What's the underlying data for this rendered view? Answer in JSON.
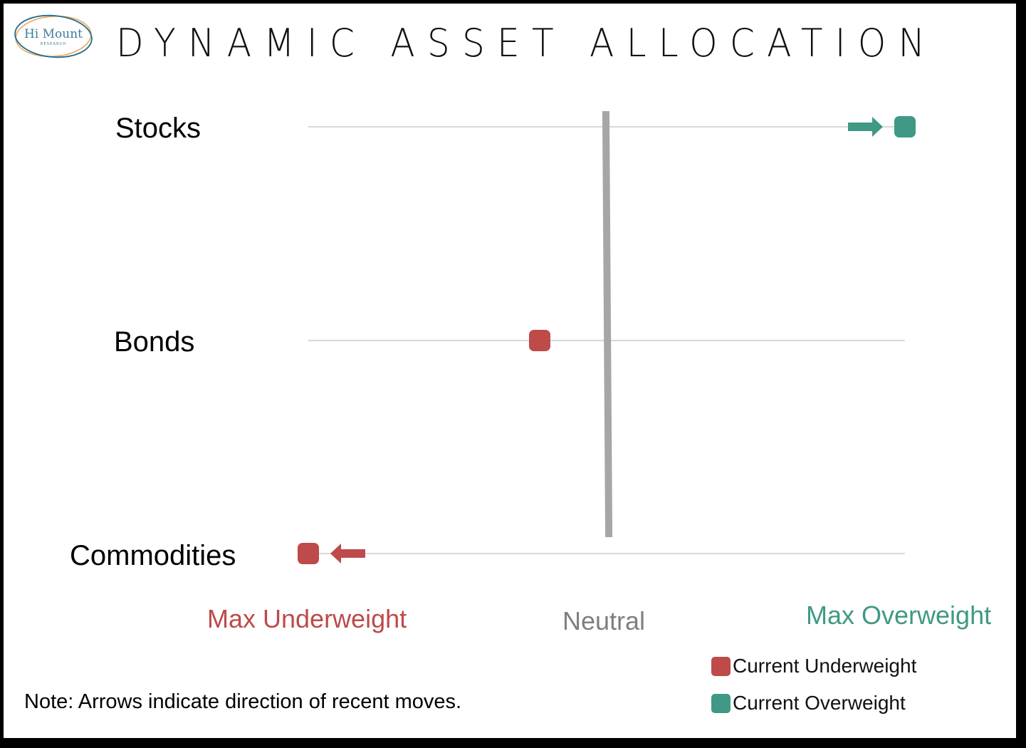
{
  "logo": {
    "name": "Hi Mount",
    "subtitle": "RESEARCH",
    "ring_colors": [
      "#1F6E8C",
      "#F0A65A"
    ],
    "text_color": "#3E7C9A"
  },
  "title": "DYNAMIC ASSET ALLOCATION",
  "colors": {
    "underweight": "#BE4A4A",
    "overweight": "#3F9985",
    "neutral": "#A6A6A6",
    "gridline": "#D9D9D9"
  },
  "axis": {
    "min_label": "Max Underweight",
    "mid_label": "Neutral",
    "max_label": "Max Overweight"
  },
  "legend": {
    "underweight_label": "Current Underweight",
    "overweight_label": "Current Overweight"
  },
  "note": "Note: Arrows indicate direction of recent moves.",
  "chart_data": {
    "type": "scatter",
    "title": "DYNAMIC ASSET ALLOCATION",
    "categories": [
      "Stocks",
      "Bonds",
      "Commodities"
    ],
    "xlim": [
      -1,
      1
    ],
    "x_tick_labels": [
      "Max Underweight",
      "Neutral",
      "Max Overweight"
    ],
    "values": [
      1.0,
      -0.22,
      -1.0
    ],
    "status": [
      "Current Overweight",
      "Current Underweight",
      "Current Underweight"
    ],
    "arrows": [
      "right",
      "none",
      "left"
    ],
    "legend": [
      "Current Underweight",
      "Current Overweight"
    ],
    "legend_position": "bottom-right",
    "grid": "horizontal lines per category",
    "annotation": "Note: Arrows indicate direction of recent moves."
  }
}
